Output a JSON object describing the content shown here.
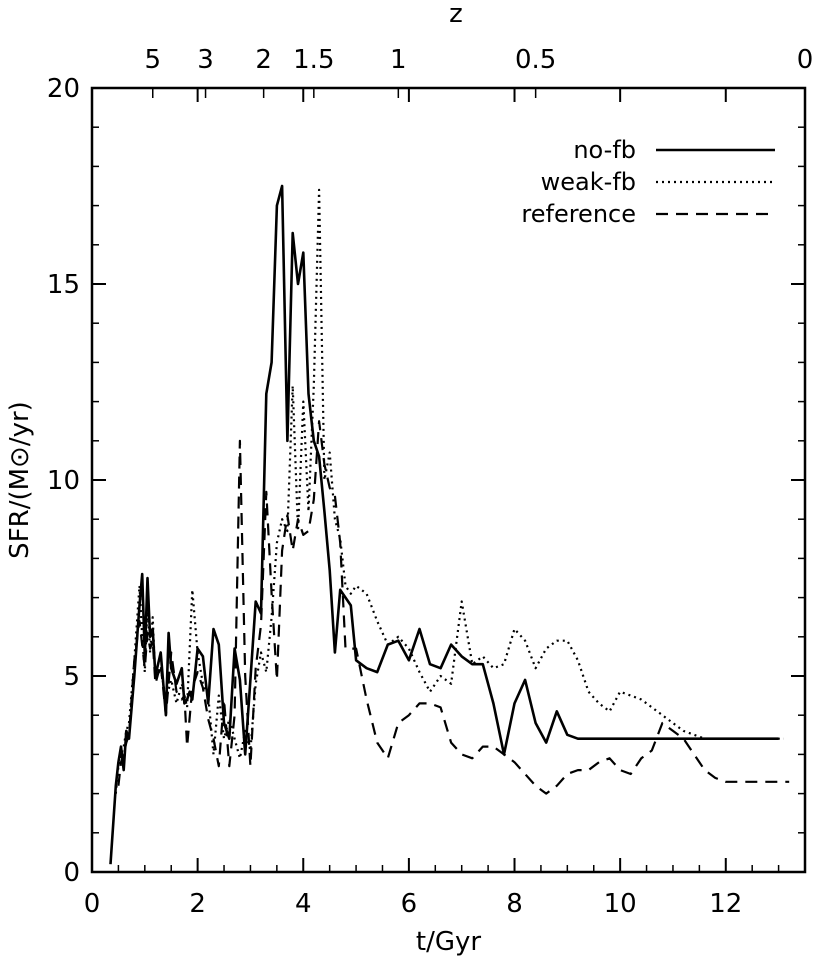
{
  "chart_data": {
    "type": "line",
    "xlabel": "t/Gyr",
    "ylabel": "SFR/(M⊙/yr)",
    "top_axis_label": "z",
    "xlim": [
      0,
      13.5
    ],
    "ylim": [
      0,
      20
    ],
    "x_ticks": [
      0,
      2,
      4,
      6,
      8,
      10,
      12
    ],
    "y_ticks": [
      0,
      5,
      10,
      15,
      20
    ],
    "top_ticks": [
      {
        "label": "5",
        "t": 1.15
      },
      {
        "label": "3",
        "t": 2.15
      },
      {
        "label": "2",
        "t": 3.25
      },
      {
        "label": "1.5",
        "t": 4.2
      },
      {
        "label": "1",
        "t": 5.8
      },
      {
        "label": "0.5",
        "t": 8.4
      },
      {
        "label": "0",
        "t": 13.5
      }
    ],
    "grid": false,
    "legend_position": "top-right",
    "series": [
      {
        "name": "no-fb",
        "style": "solid",
        "x": [
          0.35,
          0.45,
          0.5,
          0.55,
          0.6,
          0.65,
          0.7,
          0.8,
          0.9,
          0.95,
          1.0,
          1.05,
          1.1,
          1.15,
          1.2,
          1.3,
          1.4,
          1.45,
          1.5,
          1.6,
          1.7,
          1.75,
          1.8,
          1.85,
          1.9,
          2.0,
          2.1,
          2.2,
          2.3,
          2.4,
          2.5,
          2.6,
          2.7,
          2.8,
          2.9,
          3.0,
          3.1,
          3.2,
          3.3,
          3.4,
          3.5,
          3.6,
          3.7,
          3.8,
          3.9,
          4.0,
          4.1,
          4.2,
          4.3,
          4.4,
          4.5,
          4.6,
          4.7,
          4.8,
          4.9,
          5.0,
          5.2,
          5.4,
          5.6,
          5.8,
          6.0,
          6.2,
          6.4,
          6.6,
          6.8,
          7.0,
          7.2,
          7.4,
          7.6,
          7.8,
          8.0,
          8.2,
          8.4,
          8.6,
          8.8,
          9.0,
          9.2,
          9.4,
          9.6,
          9.8,
          10.0,
          10.2,
          10.4,
          10.6,
          10.8,
          11.0,
          11.2,
          11.4,
          11.6,
          11.8,
          12.0,
          12.2,
          12.4,
          12.6,
          12.8,
          13.0
        ],
        "values": [
          0.2,
          2.2,
          2.8,
          3.2,
          2.6,
          3.6,
          3.4,
          5.0,
          6.8,
          7.6,
          5.5,
          7.5,
          6.0,
          6.2,
          5.0,
          5.6,
          4.0,
          6.1,
          5.2,
          4.8,
          5.2,
          4.3,
          4.4,
          4.6,
          4.4,
          5.7,
          5.5,
          4.3,
          6.2,
          5.8,
          3.8,
          3.4,
          5.7,
          4.9,
          3.0,
          4.9,
          6.9,
          6.6,
          12.2,
          13.0,
          17.0,
          17.5,
          11.0,
          16.3,
          15.0,
          15.8,
          12.2,
          11.0,
          10.6,
          9.2,
          7.7,
          5.6,
          7.2,
          7.0,
          6.8,
          5.4,
          5.2,
          5.1,
          5.8,
          5.9,
          5.4,
          6.2,
          5.3,
          5.2,
          5.8,
          5.5,
          5.3,
          5.3,
          4.3,
          3.0,
          4.3,
          4.9,
          3.8,
          3.3,
          4.1,
          3.5,
          3.4,
          3.4,
          3.4,
          3.4,
          3.4,
          3.4,
          3.4,
          3.4,
          3.4,
          3.4,
          3.4,
          3.4,
          3.4,
          3.4,
          3.4,
          3.4,
          3.4,
          3.4,
          3.4,
          3.4
        ]
      },
      {
        "name": "weak-fb",
        "style": "dotted",
        "x": [
          0.45,
          0.5,
          0.55,
          0.6,
          0.65,
          0.7,
          0.8,
          0.9,
          0.95,
          1.0,
          1.05,
          1.1,
          1.15,
          1.2,
          1.3,
          1.4,
          1.5,
          1.6,
          1.7,
          1.8,
          1.9,
          2.0,
          2.1,
          2.2,
          2.3,
          2.4,
          2.5,
          2.6,
          2.7,
          2.8,
          2.9,
          3.0,
          3.1,
          3.2,
          3.3,
          3.4,
          3.5,
          3.6,
          3.7,
          3.8,
          3.9,
          4.0,
          4.1,
          4.2,
          4.3,
          4.4,
          4.5,
          4.6,
          4.7,
          4.8,
          4.9,
          5.0,
          5.2,
          5.4,
          5.6,
          5.8,
          6.0,
          6.2,
          6.4,
          6.6,
          6.8,
          7.0,
          7.2,
          7.4,
          7.6,
          7.8,
          8.0,
          8.2,
          8.4,
          8.6,
          8.8,
          9.0,
          9.2,
          9.4,
          9.6,
          9.8,
          10.0,
          10.4,
          10.8,
          11.2,
          11.6,
          12.0,
          12.4,
          12.6,
          12.8,
          13.1
        ],
        "values": [
          2.0,
          2.7,
          3.0,
          3.2,
          3.6,
          3.8,
          5.4,
          7.3,
          6.0,
          5.1,
          6.8,
          5.6,
          6.5,
          4.9,
          5.2,
          4.4,
          4.9,
          4.3,
          4.8,
          4.2,
          7.2,
          5.6,
          4.8,
          4.5,
          3.0,
          4.5,
          3.4,
          3.9,
          3.4,
          2.9,
          3.6,
          3.1,
          4.8,
          5.6,
          5.1,
          6.5,
          8.4,
          9.0,
          8.7,
          12.4,
          8.7,
          12.0,
          9.2,
          12.4,
          17.4,
          10.0,
          10.7,
          9.0,
          8.5,
          7.3,
          7.1,
          7.3,
          7.1,
          6.4,
          5.8,
          6.0,
          5.7,
          5.1,
          4.6,
          5.0,
          4.8,
          6.9,
          5.3,
          5.5,
          5.2,
          5.3,
          6.2,
          5.9,
          5.2,
          5.7,
          5.9,
          5.9,
          5.4,
          4.6,
          4.3,
          4.1,
          4.6,
          4.4,
          4.0,
          3.6,
          3.4,
          3.4,
          3.4,
          3.4,
          3.4,
          3.4
        ]
      },
      {
        "name": "reference",
        "style": "dashed",
        "x": [
          0.5,
          0.55,
          0.6,
          0.65,
          0.7,
          0.8,
          0.9,
          1.0,
          1.05,
          1.1,
          1.15,
          1.2,
          1.3,
          1.4,
          1.5,
          1.6,
          1.7,
          1.75,
          1.8,
          1.9,
          2.0,
          2.1,
          2.2,
          2.3,
          2.4,
          2.5,
          2.6,
          2.7,
          2.8,
          2.9,
          3.0,
          3.1,
          3.2,
          3.3,
          3.4,
          3.5,
          3.6,
          3.7,
          3.8,
          3.9,
          4.0,
          4.1,
          4.2,
          4.3,
          4.4,
          4.5,
          4.6,
          4.7,
          4.8,
          5.0,
          5.2,
          5.4,
          5.6,
          5.8,
          6.0,
          6.2,
          6.4,
          6.6,
          6.8,
          7.0,
          7.2,
          7.4,
          7.6,
          7.8,
          8.0,
          8.2,
          8.4,
          8.6,
          8.8,
          9.0,
          9.2,
          9.4,
          9.6,
          9.8,
          10.0,
          10.2,
          10.4,
          10.6,
          10.8,
          11.0,
          11.2,
          11.4,
          11.6,
          11.8,
          12.0,
          12.2,
          12.4,
          12.6,
          12.8,
          13.0,
          13.2
        ],
        "values": [
          2.2,
          2.8,
          3.0,
          3.3,
          3.5,
          5.4,
          6.4,
          5.2,
          6.1,
          5.7,
          5.9,
          4.8,
          5.3,
          4.0,
          5.6,
          4.6,
          4.4,
          4.5,
          3.2,
          4.7,
          5.1,
          4.7,
          3.9,
          3.4,
          2.7,
          4.4,
          2.7,
          4.0,
          11.0,
          5.0,
          2.7,
          5.2,
          6.3,
          9.7,
          7.1,
          4.9,
          8.2,
          9.1,
          8.2,
          9.0,
          8.6,
          8.7,
          9.5,
          11.5,
          10.4,
          9.8,
          9.6,
          8.4,
          5.7,
          5.7,
          4.4,
          3.3,
          2.9,
          3.8,
          4.0,
          4.3,
          4.3,
          4.2,
          3.3,
          3.0,
          2.9,
          3.2,
          3.2,
          3.0,
          2.8,
          2.5,
          2.2,
          2.0,
          2.2,
          2.5,
          2.6,
          2.6,
          2.8,
          2.9,
          2.6,
          2.5,
          2.9,
          3.1,
          3.8,
          3.6,
          3.4,
          3.0,
          2.6,
          2.4,
          2.3,
          2.3,
          2.3,
          2.3,
          2.3,
          2.3,
          2.3
        ]
      }
    ]
  }
}
